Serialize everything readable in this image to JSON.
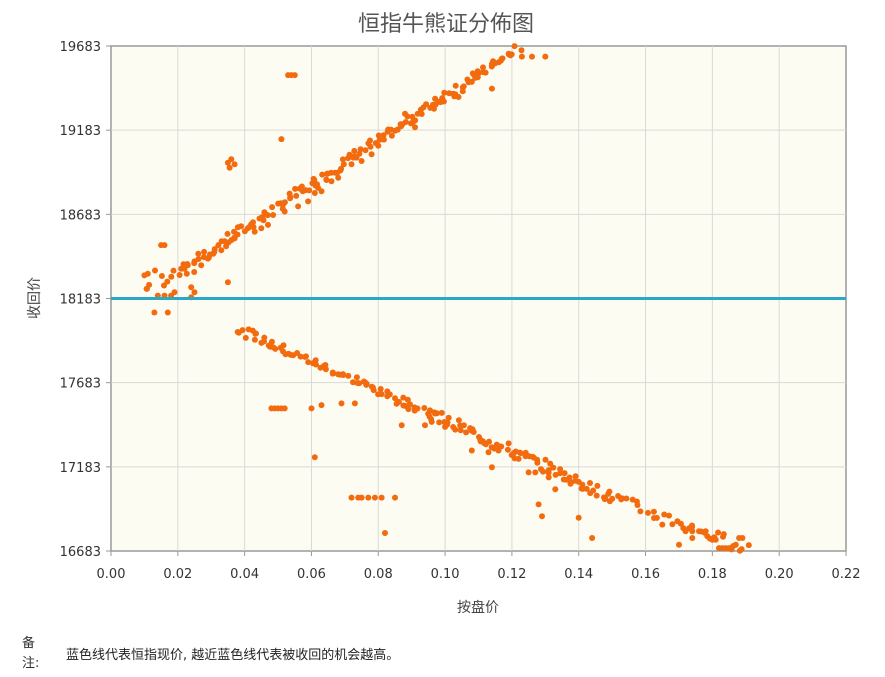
{
  "chart_data": {
    "type": "scatter",
    "title": "恒指牛熊证分佈图",
    "xlabel": "按盘价",
    "ylabel": "收回价",
    "xlim": [
      0,
      0.22
    ],
    "ylim": [
      16683,
      19683
    ],
    "x_ticks": [
      "0.00",
      "0.02",
      "0.04",
      "0.06",
      "0.08",
      "0.10",
      "0.12",
      "0.14",
      "0.16",
      "0.18",
      "0.20",
      "0.22"
    ],
    "y_ticks": [
      "16683",
      "17183",
      "17683",
      "18183",
      "18683",
      "19183",
      "19683"
    ],
    "grid": true,
    "reference_line": {
      "y": 18183,
      "color": "#2aa8c8"
    },
    "marker_color": "#f26b0f",
    "bull_segments": [
      {
        "x0": 0.025,
        "y0": 18400,
        "x1": 0.123,
        "y1": 19683,
        "n": 150,
        "spread_y": 30
      },
      {
        "x0": 0.01,
        "y0": 18260,
        "x1": 0.025,
        "y1": 18400,
        "n": 14,
        "spread_y": 60
      }
    ],
    "bear_segments": [
      {
        "x0": 0.038,
        "y0": 18000,
        "x1": 0.09,
        "y1": 17550,
        "n": 70,
        "spread_y": 25
      },
      {
        "x0": 0.09,
        "y0": 17550,
        "x1": 0.15,
        "y1": 17000,
        "n": 90,
        "spread_y": 35
      },
      {
        "x0": 0.15,
        "y0": 17000,
        "x1": 0.19,
        "y1": 16700,
        "n": 35,
        "spread_y": 35
      }
    ],
    "outliers": [
      [
        0.035,
        18990
      ],
      [
        0.036,
        19010
      ],
      [
        0.0355,
        18960
      ],
      [
        0.037,
        18980
      ],
      [
        0.053,
        19510
      ],
      [
        0.054,
        19510
      ],
      [
        0.055,
        19510
      ],
      [
        0.051,
        19130
      ],
      [
        0.035,
        18280
      ],
      [
        0.015,
        18500
      ],
      [
        0.016,
        18500
      ],
      [
        0.01,
        18320
      ],
      [
        0.011,
        18330
      ],
      [
        0.013,
        18100
      ],
      [
        0.017,
        18100
      ],
      [
        0.014,
        18200
      ],
      [
        0.016,
        18200
      ],
      [
        0.018,
        18200
      ],
      [
        0.024,
        18250
      ],
      [
        0.025,
        18220
      ],
      [
        0.024,
        18190
      ],
      [
        0.019,
        18220
      ],
      [
        0.021,
        18360
      ],
      [
        0.022,
        18360
      ],
      [
        0.023,
        18380
      ],
      [
        0.062,
        18840
      ],
      [
        0.063,
        18820
      ],
      [
        0.061,
        18810
      ],
      [
        0.048,
        17530
      ],
      [
        0.049,
        17530
      ],
      [
        0.05,
        17530
      ],
      [
        0.051,
        17530
      ],
      [
        0.052,
        17530
      ],
      [
        0.06,
        17530
      ],
      [
        0.063,
        17550
      ],
      [
        0.061,
        17240
      ],
      [
        0.072,
        17000
      ],
      [
        0.074,
        17000
      ],
      [
        0.075,
        17000
      ],
      [
        0.077,
        17000
      ],
      [
        0.079,
        17000
      ],
      [
        0.081,
        17000
      ],
      [
        0.085,
        17000
      ],
      [
        0.082,
        16790
      ],
      [
        0.069,
        17560
      ],
      [
        0.073,
        17560
      ],
      [
        0.087,
        17430
      ],
      [
        0.094,
        17430
      ],
      [
        0.096,
        17450
      ],
      [
        0.097,
        17500
      ],
      [
        0.1,
        17420
      ],
      [
        0.108,
        17280
      ],
      [
        0.113,
        17270
      ],
      [
        0.116,
        17280
      ],
      [
        0.114,
        17180
      ],
      [
        0.122,
        17230
      ],
      [
        0.125,
        17150
      ],
      [
        0.127,
        17150
      ],
      [
        0.131,
        17120
      ],
      [
        0.133,
        17050
      ],
      [
        0.128,
        16960
      ],
      [
        0.129,
        16890
      ],
      [
        0.14,
        16880
      ],
      [
        0.144,
        16760
      ],
      [
        0.139,
        17100
      ],
      [
        0.165,
        16840
      ],
      [
        0.17,
        16720
      ],
      [
        0.172,
        16800
      ],
      [
        0.174,
        16800
      ],
      [
        0.176,
        16800
      ],
      [
        0.178,
        16800
      ],
      [
        0.174,
        16760
      ],
      [
        0.18,
        16750
      ],
      [
        0.181,
        16750
      ],
      [
        0.182,
        16700
      ],
      [
        0.183,
        16700
      ],
      [
        0.184,
        16700
      ],
      [
        0.185,
        16700
      ],
      [
        0.187,
        16720
      ],
      [
        0.188,
        16760
      ],
      [
        0.189,
        16760
      ],
      [
        0.123,
        19620
      ],
      [
        0.126,
        19620
      ],
      [
        0.13,
        19620
      ],
      [
        0.115,
        19580
      ],
      [
        0.11,
        19520
      ],
      [
        0.114,
        19430
      ],
      [
        0.108,
        19470
      ],
      [
        0.104,
        19380
      ],
      [
        0.097,
        19370
      ],
      [
        0.091,
        19200
      ],
      [
        0.088,
        19280
      ],
      [
        0.085,
        19180
      ],
      [
        0.08,
        19090
      ],
      [
        0.078,
        19040
      ],
      [
        0.075,
        19000
      ],
      [
        0.072,
        18980
      ],
      [
        0.068,
        18900
      ],
      [
        0.066,
        18880
      ],
      [
        0.059,
        18760
      ],
      [
        0.056,
        18730
      ],
      [
        0.052,
        18700
      ],
      [
        0.047,
        18620
      ],
      [
        0.045,
        18600
      ],
      [
        0.043,
        18580
      ],
      [
        0.037,
        18540
      ],
      [
        0.033,
        18470
      ],
      [
        0.029,
        18420
      ],
      [
        0.027,
        18380
      ]
    ]
  },
  "note": {
    "label": "备注:",
    "text": "蓝色线代表恒指现价, 越近蓝色线代表被收回的机会越高。"
  }
}
